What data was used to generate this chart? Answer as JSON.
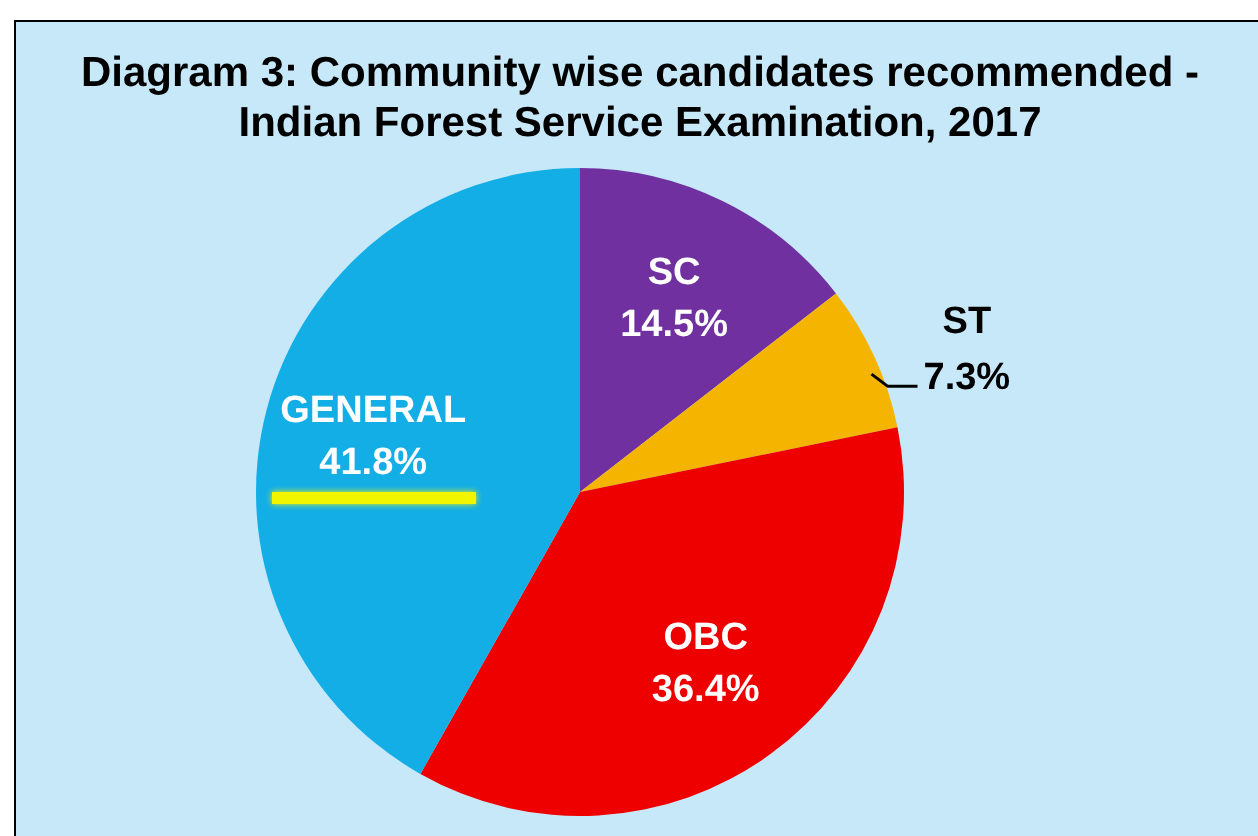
{
  "chart_data": {
    "type": "pie",
    "title": "Diagram 3: Community wise candidates recommended - Indian Forest Service Examination, 2017",
    "categories": [
      "SC",
      "ST",
      "OBC",
      "GENERAL"
    ],
    "values": [
      14.5,
      7.3,
      36.4,
      41.8
    ],
    "colors": [
      "#7030a0",
      "#f4b400",
      "#ee0000",
      "#13aee6"
    ],
    "value_labels": [
      "14.5%",
      "7.3%",
      "36.4%",
      "41.8%"
    ],
    "legend": false
  }
}
